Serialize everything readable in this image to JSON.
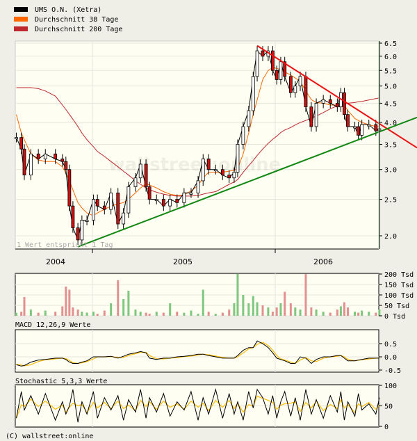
{
  "legend": [
    {
      "label": "UMS O.N. (Xetra)",
      "color": "#000000"
    },
    {
      "label": "Durchschnitt 38 Tage",
      "color": "#ff6600"
    },
    {
      "label": "Durchschnitt 200 Tage",
      "color": "#c0282f"
    }
  ],
  "note": "1 Wert entspricht 1 Tag",
  "watermark": "wallstreet:online",
  "footer": "(C) wallstreet:online",
  "colors": {
    "up_volume": "#7fc67f",
    "down_volume": "#e39090",
    "trend_resistance": "#ee1111",
    "trend_support": "#118811",
    "signal": "#ffbb00",
    "plot_bg": "#fefef2",
    "grid": "#e6e6de"
  },
  "chart_data": [
    {
      "type": "line",
      "subtype": "candlestick",
      "y_scale": "log",
      "ylim": [
        1.85,
        6.6
      ],
      "x_range": [
        "2004-07-31",
        "2006-07-31"
      ],
      "x_tick_labels": [
        "2004",
        "2005",
        "2006"
      ],
      "y_ticks": [
        "2.0",
        "2.5",
        "3.0",
        "3.5",
        "4.0",
        "4.5",
        "5.0",
        "5.5",
        "6.0",
        "6.5"
      ],
      "grid": true,
      "legend_position": "top-left",
      "dates": [
        "2004-08-02",
        "2004-08-12",
        "2004-08-18",
        "2004-08-31",
        "2004-09-15",
        "2004-09-29",
        "2004-10-19",
        "2004-11-02",
        "2004-11-09",
        "2004-11-16",
        "2004-11-23",
        "2004-12-03",
        "2004-12-11",
        "2004-12-21",
        "2005-01-03",
        "2005-01-11",
        "2005-01-25",
        "2005-02-07",
        "2005-02-21",
        "2005-03-04",
        "2005-03-14",
        "2005-03-28",
        "2005-04-07",
        "2005-04-18",
        "2005-04-25",
        "2005-05-09",
        "2005-05-23",
        "2005-06-05",
        "2005-06-19",
        "2005-07-03",
        "2005-07-17",
        "2005-07-31",
        "2005-08-10",
        "2005-08-21",
        "2005-09-04",
        "2005-09-18",
        "2005-10-01",
        "2005-10-11",
        "2005-10-18",
        "2005-10-29",
        "2005-11-09",
        "2005-11-18",
        "2005-11-26",
        "2005-12-07",
        "2005-12-18",
        "2005-12-27",
        "2006-01-04",
        "2006-01-12",
        "2006-01-20",
        "2006-02-01",
        "2006-02-10",
        "2006-02-20",
        "2006-03-03",
        "2006-03-14",
        "2006-03-24",
        "2006-04-07",
        "2006-04-21",
        "2006-05-05",
        "2006-05-12",
        "2006-05-19",
        "2006-05-26",
        "2006-06-09",
        "2006-06-16",
        "2006-06-23",
        "2006-07-07",
        "2006-07-21",
        "2006-07-28"
      ],
      "series": [
        {
          "name": "UMS O.N. (Xetra)",
          "values": [
            3.65,
            3.4,
            2.9,
            3.3,
            3.2,
            3.3,
            3.2,
            3.15,
            3.0,
            2.4,
            2.1,
            1.95,
            2.2,
            2.2,
            2.5,
            2.4,
            2.35,
            2.6,
            2.15,
            2.3,
            2.7,
            2.85,
            3.1,
            2.7,
            2.5,
            2.5,
            2.4,
            2.5,
            2.45,
            2.6,
            2.6,
            2.8,
            3.2,
            3.0,
            3.0,
            2.9,
            2.85,
            2.95,
            3.5,
            3.9,
            4.3,
            5.3,
            6.2,
            6.0,
            6.2,
            5.5,
            5.2,
            5.8,
            5.3,
            4.8,
            5.0,
            5.3,
            4.4,
            3.9,
            4.5,
            4.6,
            4.5,
            4.4,
            4.8,
            4.2,
            3.9,
            3.9,
            3.7,
            3.95,
            3.95,
            3.8,
            3.85
          ]
        },
        {
          "name": "Durchschnitt 38 Tage",
          "values": [
            4.2,
            3.75,
            3.6,
            3.3,
            3.18,
            3.15,
            3.15,
            3.05,
            2.93,
            2.8,
            2.65,
            2.45,
            2.37,
            2.3,
            2.26,
            2.3,
            2.35,
            2.4,
            2.43,
            2.45,
            2.5,
            2.6,
            2.68,
            2.75,
            2.73,
            2.68,
            2.62,
            2.58,
            2.56,
            2.57,
            2.63,
            2.72,
            2.85,
            2.95,
            2.95,
            2.95,
            2.97,
            2.99,
            3.02,
            3.3,
            3.75,
            4.2,
            4.6,
            5.2,
            5.5,
            5.6,
            5.57,
            5.52,
            5.45,
            5.35,
            5.25,
            5.15,
            4.85,
            4.6,
            4.52,
            4.5,
            4.45,
            4.45,
            4.5,
            4.45,
            4.3,
            4.1,
            4.05,
            4.0,
            3.95,
            3.9,
            3.9
          ]
        },
        {
          "name": "Durchschnitt 200 Tage",
          "values": [
            4.95,
            4.95,
            4.95,
            4.95,
            4.92,
            4.85,
            4.7,
            4.45,
            4.33,
            4.2,
            4.08,
            3.9,
            3.75,
            3.6,
            3.45,
            3.35,
            3.25,
            3.15,
            3.05,
            2.97,
            2.9,
            2.8,
            2.74,
            2.68,
            2.65,
            2.61,
            2.58,
            2.56,
            2.55,
            2.55,
            2.55,
            2.56,
            2.58,
            2.6,
            2.62,
            2.68,
            2.74,
            2.78,
            2.82,
            2.95,
            3.07,
            3.17,
            3.27,
            3.4,
            3.52,
            3.61,
            3.68,
            3.76,
            3.82,
            3.88,
            3.94,
            4.0,
            4.05,
            4.11,
            4.16,
            4.25,
            4.35,
            4.43,
            4.46,
            4.48,
            4.5,
            4.52,
            4.54,
            4.55,
            4.59,
            4.63,
            4.65
          ]
        }
      ],
      "trendlines": [
        {
          "role": "resistance",
          "points": [
            [
              "2005-11-26",
              6.4
            ],
            [
              "2006-07-28",
              3.97
            ]
          ]
        },
        {
          "role": "support",
          "points": [
            [
              "2004-12-03",
              1.87
            ],
            [
              "2006-07-28",
              3.78
            ]
          ]
        }
      ]
    },
    {
      "type": "bar",
      "y_ticks": [
        "200 Tsd",
        "150 Tsd",
        "100 Tsd",
        "50 Tsd",
        "0 Tsd"
      ],
      "ylim": [
        0,
        200
      ],
      "unit": "Tsd",
      "values": [
        15,
        20,
        90,
        30,
        15,
        25,
        20,
        45,
        140,
        125,
        40,
        30,
        20,
        15,
        20,
        10,
        25,
        60,
        170,
        80,
        120,
        30,
        20,
        15,
        10,
        20,
        15,
        60,
        20,
        15,
        25,
        10,
        125,
        20,
        10,
        15,
        30,
        60,
        200,
        100,
        60,
        95,
        65,
        50,
        40,
        20,
        40,
        60,
        115,
        60,
        40,
        30,
        200,
        40,
        30,
        20,
        15,
        30,
        45,
        65,
        40,
        20,
        15,
        25,
        20,
        15,
        30
      ]
    },
    {
      "type": "line",
      "title": "MACD 12,26,9 Werte",
      "y_ticks": [
        "0.5",
        "0.0",
        "-0.5"
      ],
      "ylim": [
        -0.5,
        1.0
      ],
      "series": [
        {
          "values": [
            -0.3,
            -0.35,
            -0.33,
            -0.2,
            -0.12,
            -0.1,
            -0.05,
            -0.05,
            -0.1,
            -0.2,
            -0.25,
            -0.25,
            -0.2,
            -0.15,
            0,
            0,
            0,
            0.02,
            -0.05,
            0.02,
            0.1,
            0.15,
            0.2,
            0.15,
            -0.05,
            -0.1,
            -0.05,
            -0.05,
            0,
            0.02,
            0.05,
            0.1,
            0.1,
            0.05,
            0,
            -0.05,
            -0.05,
            -0.05,
            0.05,
            0.25,
            0.35,
            0.35,
            0.6,
            0.5,
            0.35,
            0.15,
            -0.05,
            -0.1,
            -0.15,
            -0.25,
            -0.25,
            0,
            -0.05,
            -0.25,
            -0.1,
            0,
            0,
            0.05,
            0.05,
            -0.05,
            -0.15,
            -0.15,
            -0.12,
            -0.1,
            -0.05,
            -0.05,
            -0.05
          ]
        },
        {
          "values": [
            -0.28,
            -0.31,
            -0.34,
            -0.3,
            -0.18,
            -0.11,
            -0.08,
            -0.05,
            -0.07,
            -0.14,
            -0.22,
            -0.25,
            -0.23,
            -0.18,
            -0.08,
            0,
            0,
            0.01,
            -0.02,
            -0.02,
            0.05,
            0.12,
            0.17,
            0.17,
            0.05,
            -0.07,
            -0.08,
            -0.05,
            -0.03,
            0.01,
            0.03,
            0.07,
            0.1,
            0.08,
            0.03,
            -0.02,
            -0.05,
            -0.05,
            0,
            0.15,
            0.3,
            0.35,
            0.47,
            0.55,
            0.43,
            0.25,
            0.05,
            -0.08,
            -0.12,
            -0.2,
            -0.25,
            -0.12,
            -0.03,
            -0.15,
            -0.18,
            -0.05,
            0,
            0.02,
            0.05,
            0,
            -0.1,
            -0.15,
            -0.13,
            -0.11,
            -0.08,
            -0.05,
            -0.05
          ]
        }
      ]
    },
    {
      "type": "line",
      "title": "Stochastic 5,3,3 Werte",
      "y_ticks": [
        "100",
        "50",
        "0"
      ],
      "ylim": [
        0,
        100
      ],
      "series": [
        {
          "values": [
            20,
            85,
            40,
            75,
            30,
            80,
            15,
            60,
            30,
            50,
            90,
            10,
            60,
            30,
            85,
            20,
            70,
            40,
            75,
            15,
            65,
            35,
            90,
            20,
            70,
            35,
            80,
            25,
            60,
            40,
            85,
            15,
            70,
            30,
            90,
            20,
            80,
            30,
            60,
            15,
            85,
            45,
            90,
            70,
            30,
            75,
            20,
            60,
            85,
            25,
            70,
            15,
            90,
            30,
            65,
            20,
            75,
            35,
            85,
            15,
            60,
            25,
            80,
            40,
            55,
            30,
            70
          ]
        }
      ]
    }
  ]
}
